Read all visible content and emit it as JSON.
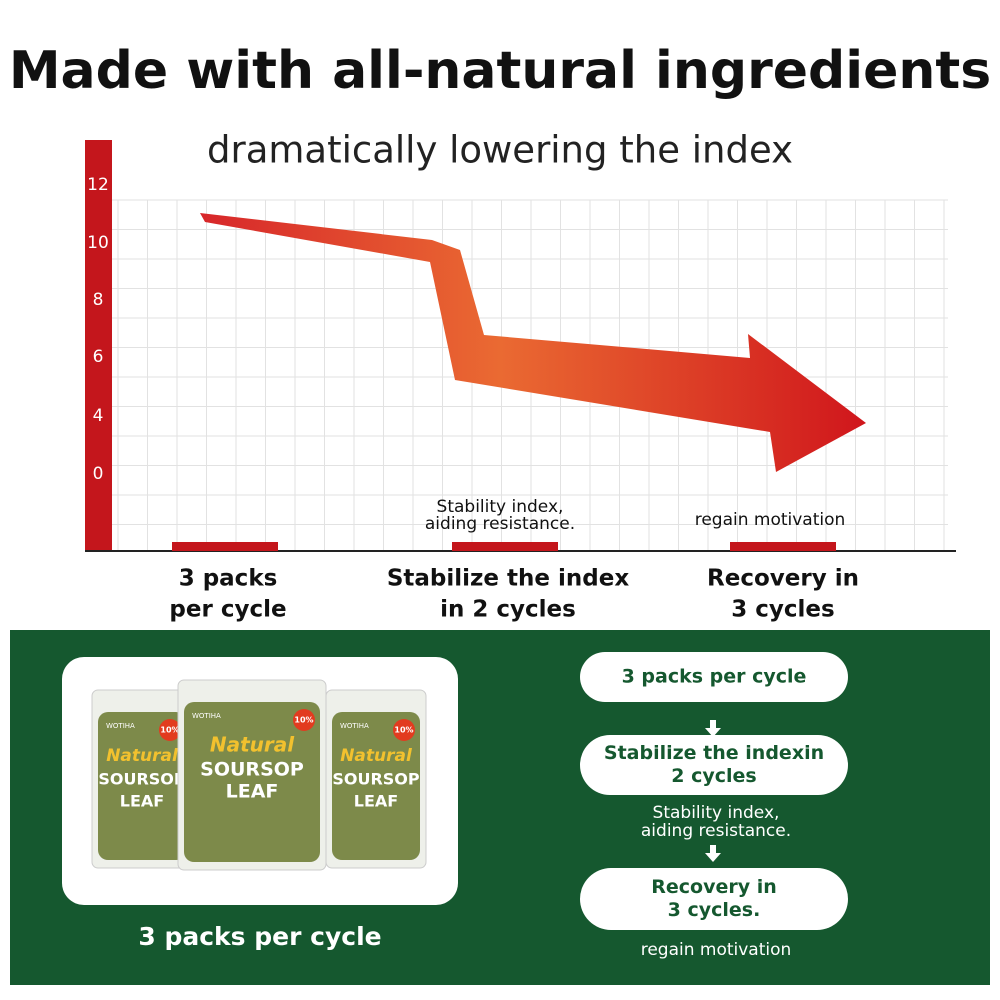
{
  "header": {
    "title": "Made with all-natural ingredients",
    "subtitle": "dramatically lowering the index"
  },
  "graph": {
    "axis_labels": [
      "12",
      "10",
      "8",
      "6",
      "4",
      "0"
    ],
    "annotations": [
      "Stability index,",
      "aiding resistance.",
      "regain motivation"
    ],
    "stages": [
      [
        "3 packs",
        "per cycle"
      ],
      [
        "Stabilize the index",
        "in 2 cycles"
      ],
      [
        "Recovery in",
        "3 cycles"
      ]
    ]
  },
  "product": {
    "brand": "WOTIHA",
    "name": [
      "Natural",
      "SOURSOP",
      "LEAF"
    ],
    "badge": "10%",
    "caption": "3 packs per cycle"
  },
  "steps": [
    {
      "label": [
        "3 packs per cycle"
      ]
    },
    {
      "label": [
        "Stabilize the indexin",
        "2 cycles"
      ],
      "note": [
        "Stability index,",
        "aiding resistance."
      ]
    },
    {
      "label": [
        "Recovery in",
        "3 cycles."
      ],
      "note": [
        "regain motivation"
      ]
    }
  ]
}
